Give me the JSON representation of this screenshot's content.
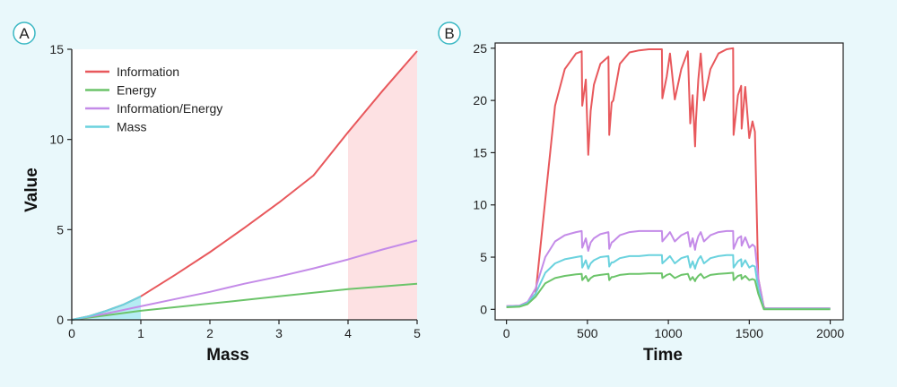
{
  "panels": {
    "a_label": "A",
    "b_label": "B"
  },
  "chart_data": [
    {
      "type": "line",
      "panel": "A",
      "xlabel": "Mass",
      "ylabel": "Value",
      "xlim": [
        0,
        5
      ],
      "ylim": [
        0,
        15
      ],
      "x_ticks": [
        "0",
        "1",
        "2",
        "3",
        "4",
        "5"
      ],
      "y_ticks": [
        "0",
        "5",
        "10",
        "15"
      ],
      "grid": false,
      "legend_position": "top-left",
      "shaded_regions": [
        {
          "series": "Mass",
          "x_range": [
            0,
            1
          ],
          "color": "#b5ecf3"
        },
        {
          "series": "Information",
          "x_range": [
            4,
            5
          ],
          "color": "#fde1e3"
        }
      ],
      "series": [
        {
          "name": "Information",
          "color": "#e8585c",
          "x": [
            0,
            0.25,
            0.5,
            0.75,
            1,
            1.5,
            2,
            2.5,
            3,
            3.5,
            4,
            4.5,
            5
          ],
          "y": [
            0,
            0.2,
            0.5,
            0.85,
            1.3,
            2.5,
            3.75,
            5.1,
            6.5,
            8.0,
            10.4,
            12.7,
            14.9
          ]
        },
        {
          "name": "Energy",
          "color": "#6cc46a",
          "x": [
            0,
            0.5,
            1,
            1.5,
            2,
            2.5,
            3,
            3.5,
            4,
            4.5,
            5
          ],
          "y": [
            0,
            0.25,
            0.5,
            0.7,
            0.9,
            1.1,
            1.3,
            1.5,
            1.7,
            1.85,
            2.0
          ]
        },
        {
          "name": "Information/Energy",
          "color": "#c48be8",
          "x": [
            0,
            0.5,
            1,
            1.5,
            2,
            2.5,
            3,
            3.5,
            4,
            4.5,
            5
          ],
          "y": [
            0,
            0.35,
            0.75,
            1.15,
            1.55,
            2.0,
            2.4,
            2.85,
            3.35,
            3.9,
            4.4
          ]
        },
        {
          "name": "Mass",
          "color": "#6ad2de",
          "x": [
            0,
            0.25,
            0.5,
            0.75,
            1
          ],
          "y": [
            0,
            0.2,
            0.5,
            0.85,
            1.3
          ]
        }
      ]
    },
    {
      "type": "line",
      "panel": "B",
      "xlabel": "Time",
      "ylabel": "",
      "xlim": [
        -70,
        2080
      ],
      "ylim": [
        -1,
        25.5
      ],
      "x_ticks": [
        "0",
        "500",
        "1000",
        "1500",
        "2000"
      ],
      "y_ticks": [
        "0",
        "5",
        "10",
        "15",
        "20",
        "25"
      ],
      "grid": false,
      "series": [
        {
          "color": "#e8585c",
          "x": [
            0,
            80,
            130,
            180,
            240,
            300,
            360,
            430,
            465,
            468,
            490,
            505,
            520,
            540,
            580,
            630,
            635,
            650,
            660,
            700,
            760,
            820,
            880,
            960,
            963,
            990,
            1010,
            1040,
            1080,
            1120,
            1135,
            1150,
            1165,
            1170,
            1185,
            1200,
            1220,
            1260,
            1310,
            1360,
            1400,
            1403,
            1430,
            1450,
            1453,
            1475,
            1500,
            1520,
            1535,
            1555,
            1590,
            1600,
            1700,
            2000
          ],
          "y": [
            0.3,
            0.35,
            0.7,
            1.5,
            10.5,
            19.5,
            23.0,
            24.5,
            24.7,
            19.5,
            22.0,
            14.8,
            19.0,
            21.5,
            23.5,
            24.2,
            16.7,
            19.8,
            20.0,
            23.5,
            24.6,
            24.8,
            24.9,
            24.9,
            20.2,
            22.3,
            24.5,
            20.1,
            23.0,
            24.7,
            17.8,
            20.5,
            15.6,
            18.0,
            22.0,
            24.5,
            20.0,
            23.0,
            24.5,
            24.9,
            25.0,
            16.7,
            20.5,
            21.4,
            17.3,
            21.3,
            16.4,
            18.0,
            17.0,
            3.0,
            0.2,
            0.1,
            0.1,
            0.1
          ]
        },
        {
          "color": "#c48be8",
          "x": [
            0,
            80,
            130,
            180,
            240,
            300,
            360,
            430,
            465,
            468,
            490,
            505,
            520,
            540,
            580,
            630,
            635,
            650,
            660,
            700,
            760,
            820,
            880,
            960,
            963,
            990,
            1010,
            1040,
            1080,
            1120,
            1135,
            1150,
            1165,
            1170,
            1185,
            1200,
            1220,
            1260,
            1310,
            1360,
            1400,
            1403,
            1430,
            1450,
            1453,
            1475,
            1500,
            1520,
            1535,
            1555,
            1590,
            1600,
            1700,
            2000
          ],
          "y": [
            0.3,
            0.35,
            0.7,
            2.0,
            5.0,
            6.5,
            7.1,
            7.4,
            7.5,
            5.9,
            6.8,
            5.6,
            6.4,
            6.8,
            7.2,
            7.4,
            5.8,
            6.4,
            6.5,
            7.1,
            7.4,
            7.5,
            7.5,
            7.5,
            6.5,
            7.0,
            7.4,
            6.5,
            7.1,
            7.4,
            6.0,
            6.8,
            5.7,
            6.2,
            7.0,
            7.4,
            6.5,
            7.1,
            7.4,
            7.5,
            7.5,
            5.8,
            6.8,
            7.0,
            6.1,
            6.9,
            5.9,
            6.2,
            6.0,
            3.0,
            0.1,
            0.1,
            0.1,
            0.1
          ]
        },
        {
          "color": "#6ad2de",
          "x": [
            0,
            80,
            130,
            180,
            240,
            300,
            360,
            430,
            465,
            468,
            490,
            505,
            520,
            540,
            580,
            630,
            635,
            650,
            660,
            700,
            760,
            820,
            880,
            960,
            963,
            990,
            1010,
            1040,
            1080,
            1120,
            1135,
            1150,
            1165,
            1170,
            1185,
            1200,
            1220,
            1260,
            1310,
            1360,
            1400,
            1403,
            1430,
            1450,
            1453,
            1475,
            1500,
            1520,
            1535,
            1555,
            1590,
            1600,
            1700,
            2000
          ],
          "y": [
            0.25,
            0.3,
            0.6,
            1.5,
            3.5,
            4.4,
            4.8,
            5.0,
            5.1,
            4.0,
            4.7,
            3.9,
            4.4,
            4.7,
            5.0,
            5.1,
            4.1,
            4.5,
            4.5,
            4.9,
            5.1,
            5.1,
            5.2,
            5.2,
            4.4,
            4.8,
            5.1,
            4.4,
            4.9,
            5.1,
            4.0,
            4.6,
            3.9,
            4.2,
            4.8,
            5.1,
            4.4,
            4.9,
            5.1,
            5.2,
            5.2,
            4.0,
            4.6,
            4.8,
            4.1,
            4.7,
            4.0,
            4.2,
            4.1,
            2.0,
            0.05,
            0.05,
            0.05,
            0.05
          ]
        },
        {
          "color": "#6cc46a",
          "x": [
            0,
            80,
            130,
            180,
            240,
            300,
            360,
            430,
            465,
            468,
            490,
            505,
            520,
            540,
            580,
            630,
            635,
            650,
            660,
            700,
            760,
            820,
            880,
            960,
            963,
            990,
            1010,
            1040,
            1080,
            1120,
            1135,
            1150,
            1165,
            1170,
            1185,
            1200,
            1220,
            1260,
            1310,
            1360,
            1400,
            1403,
            1430,
            1450,
            1453,
            1475,
            1500,
            1520,
            1535,
            1555,
            1590,
            1600,
            1700,
            2000
          ],
          "y": [
            0.2,
            0.25,
            0.5,
            1.2,
            2.5,
            3.0,
            3.2,
            3.35,
            3.4,
            2.8,
            3.2,
            2.7,
            3.0,
            3.2,
            3.3,
            3.4,
            2.8,
            3.1,
            3.1,
            3.3,
            3.4,
            3.4,
            3.45,
            3.45,
            3.0,
            3.3,
            3.4,
            3.0,
            3.3,
            3.4,
            2.8,
            3.1,
            2.7,
            2.9,
            3.2,
            3.4,
            3.0,
            3.3,
            3.4,
            3.45,
            3.5,
            2.8,
            3.2,
            3.3,
            2.9,
            3.2,
            2.8,
            2.9,
            2.8,
            1.5,
            0.0,
            0.0,
            0.0,
            0.0
          ]
        }
      ]
    }
  ]
}
